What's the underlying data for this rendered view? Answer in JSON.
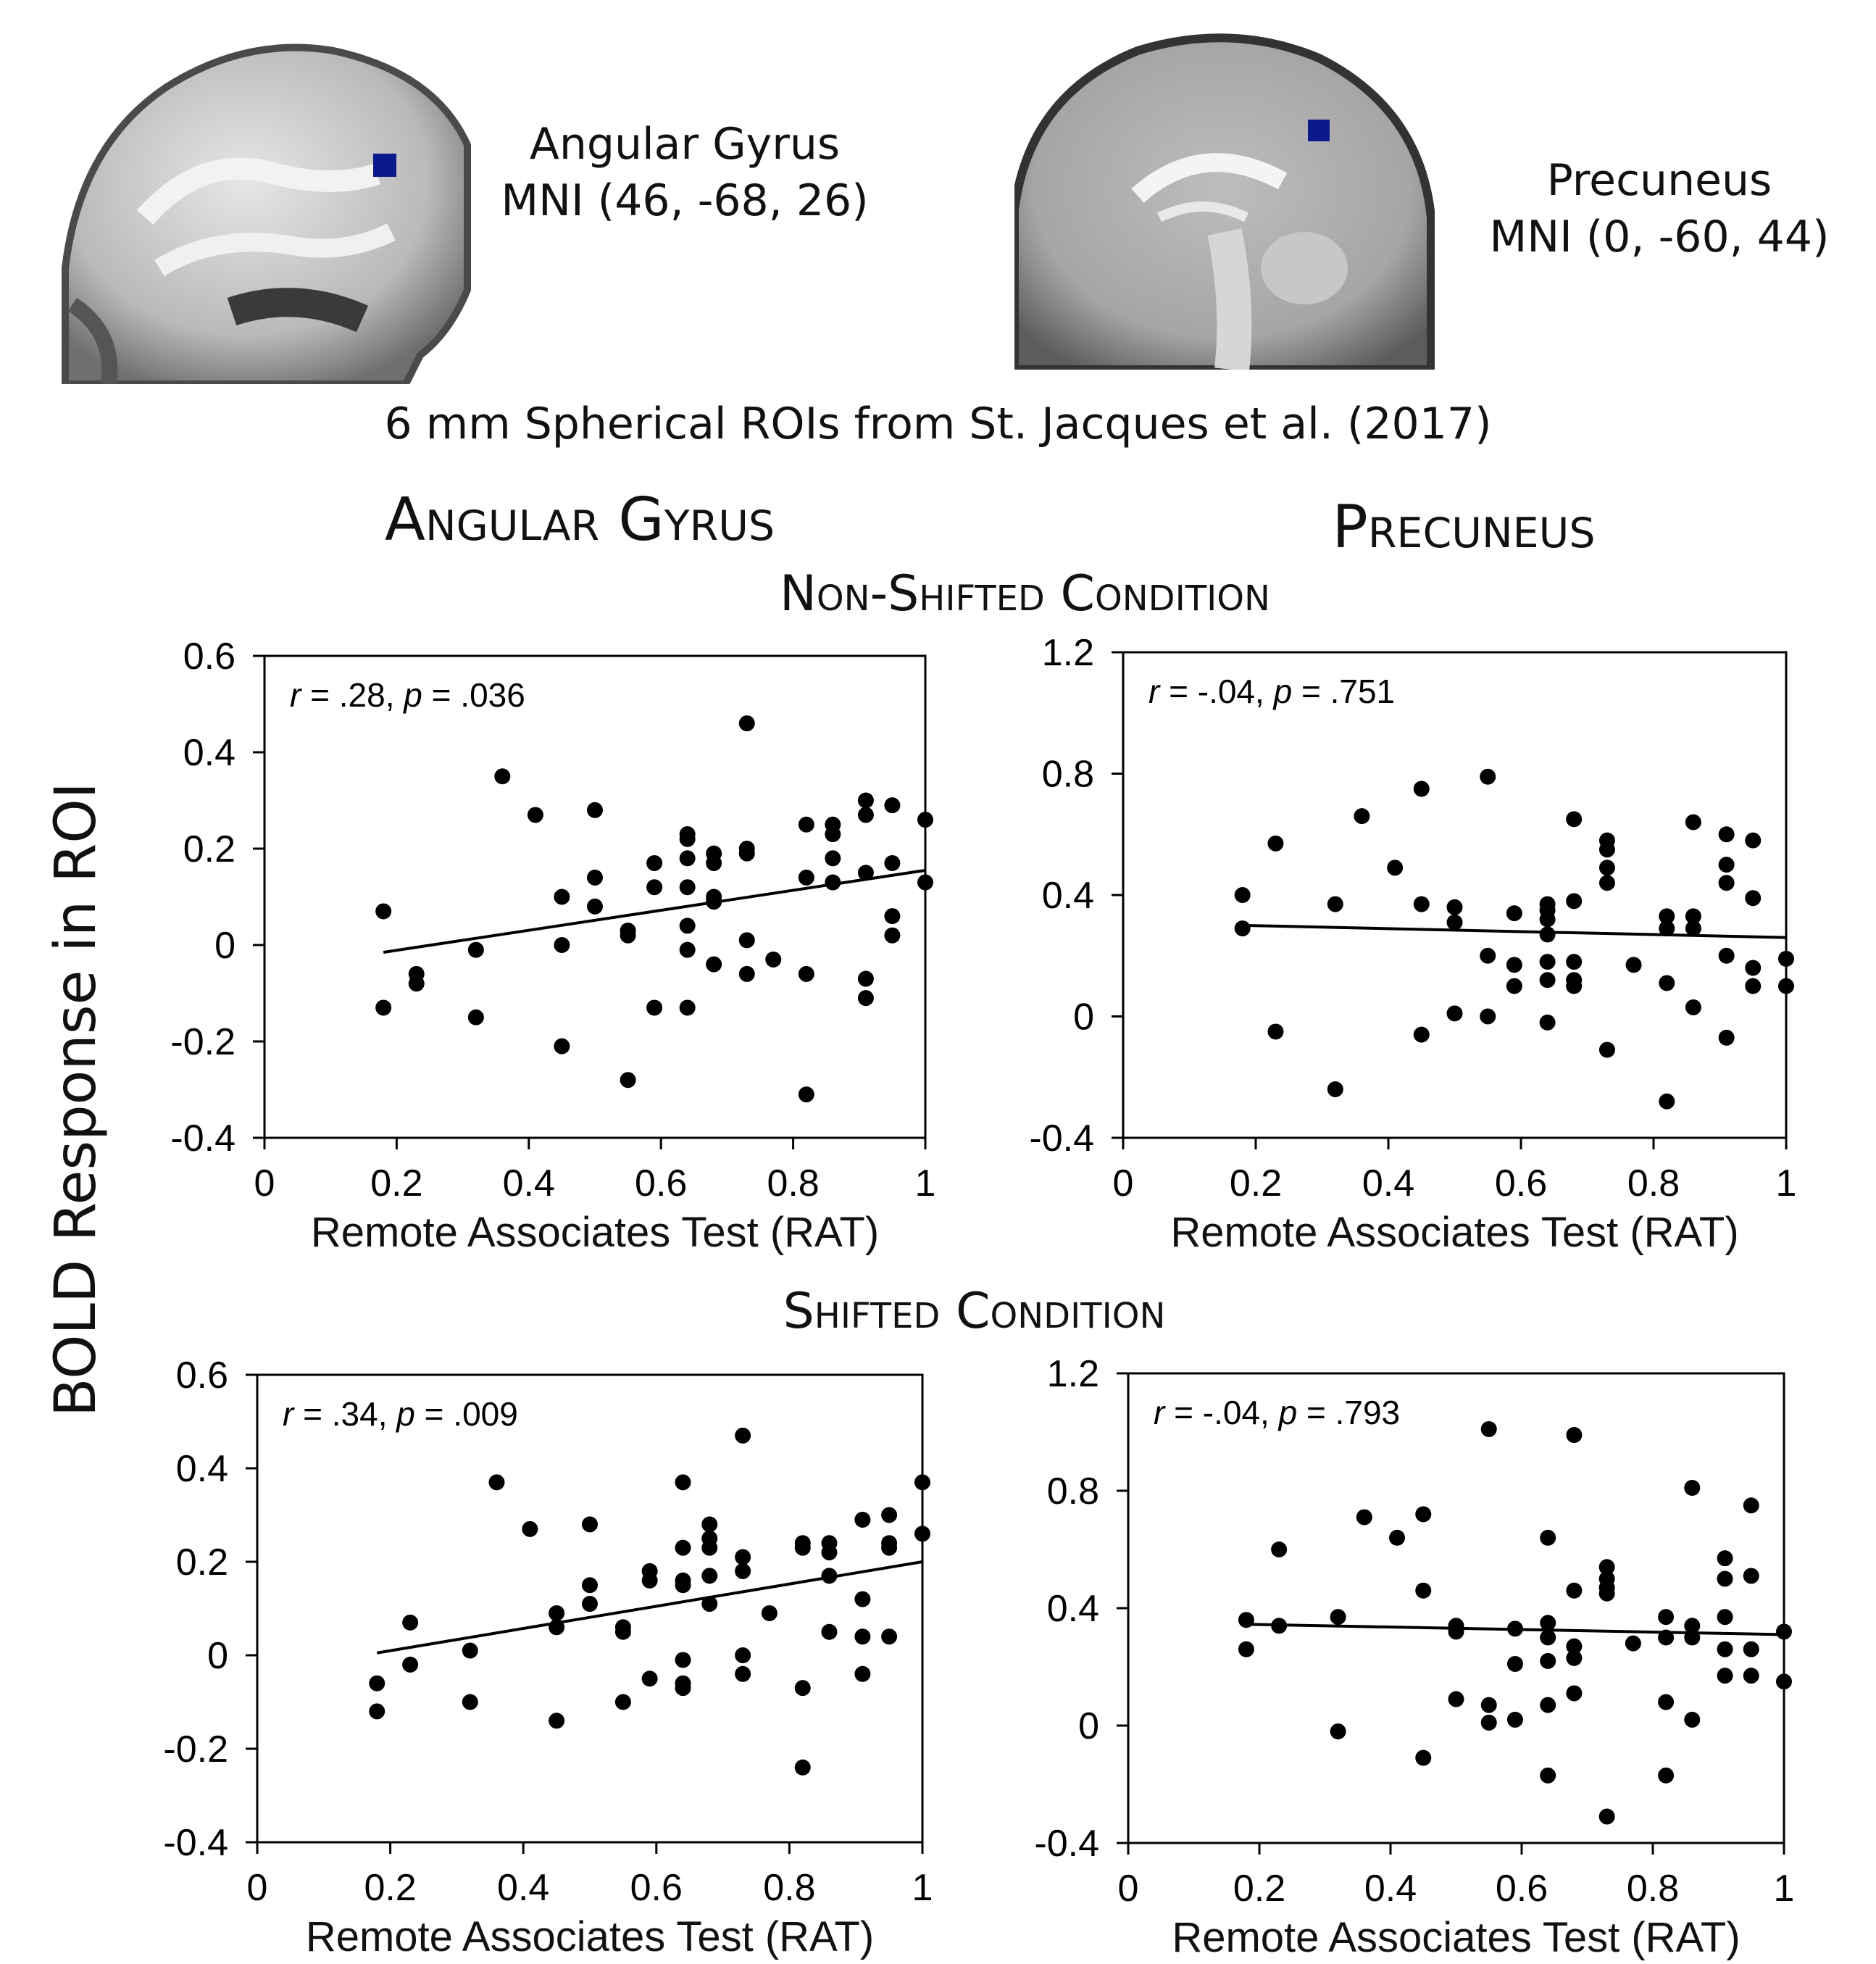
{
  "rois": [
    {
      "name": "Angular Gyrus",
      "coords": "MNI (46, -68, 26)"
    },
    {
      "name": "Precuneus",
      "coords": "MNI (0, -60, 44)"
    }
  ],
  "caption": "6 mm Spherical ROIs from St. Jacques et al. (2017)",
  "column_titles": [
    "Angular Gyrus",
    "Precuneus"
  ],
  "condition_titles": [
    "Non-Shifted Condition",
    "Shifted Condition"
  ],
  "y_label": "BOLD Response in ROI",
  "colors": {
    "marker": "#000000",
    "roi_marker": "#0a1a8c"
  },
  "chart_data": [
    {
      "type": "scatter",
      "panel": "Angular Gyrus – Non-Shifted Condition",
      "annotation": {
        "r": "r",
        "r_val": " = .28, ",
        "p": "p",
        "p_val": " = .036"
      },
      "xlabel": "Remote Associates Test (RAT)",
      "xlim": [
        0,
        1
      ],
      "ylim": [
        -0.4,
        0.6
      ],
      "xticks": [
        0,
        0.2,
        0.4,
        0.6,
        0.8,
        1
      ],
      "xtick_labels": [
        "0",
        "0.2",
        "0.4",
        "0.6",
        "0.8",
        "1"
      ],
      "yticks": [
        -0.4,
        -0.2,
        0,
        0.2,
        0.4,
        0.6
      ],
      "ytick_labels": [
        "-0.4",
        "-0.2",
        "0",
        "0.2",
        "0.4",
        "0.6"
      ],
      "fit_line": [
        [
          0.18,
          -0.015
        ],
        [
          1.0,
          0.155
        ]
      ],
      "points": [
        [
          0.18,
          0.07
        ],
        [
          0.18,
          -0.13
        ],
        [
          0.23,
          -0.06
        ],
        [
          0.23,
          -0.08
        ],
        [
          0.32,
          -0.01
        ],
        [
          0.32,
          -0.15
        ],
        [
          0.36,
          0.35
        ],
        [
          0.41,
          0.27
        ],
        [
          0.45,
          0.1
        ],
        [
          0.45,
          0.0
        ],
        [
          0.45,
          -0.21
        ],
        [
          0.5,
          0.28
        ],
        [
          0.5,
          0.14
        ],
        [
          0.5,
          0.08
        ],
        [
          0.55,
          0.03
        ],
        [
          0.55,
          0.02
        ],
        [
          0.55,
          -0.28
        ],
        [
          0.59,
          0.17
        ],
        [
          0.59,
          0.12
        ],
        [
          0.59,
          -0.13
        ],
        [
          0.64,
          0.23
        ],
        [
          0.64,
          0.22
        ],
        [
          0.64,
          0.18
        ],
        [
          0.64,
          0.12
        ],
        [
          0.64,
          0.04
        ],
        [
          0.64,
          -0.01
        ],
        [
          0.64,
          -0.13
        ],
        [
          0.68,
          0.19
        ],
        [
          0.68,
          0.17
        ],
        [
          0.68,
          0.1
        ],
        [
          0.68,
          0.09
        ],
        [
          0.68,
          -0.04
        ],
        [
          0.73,
          0.46
        ],
        [
          0.73,
          0.2
        ],
        [
          0.73,
          0.19
        ],
        [
          0.73,
          0.01
        ],
        [
          0.73,
          -0.06
        ],
        [
          0.77,
          -0.03
        ],
        [
          0.82,
          0.25
        ],
        [
          0.82,
          0.14
        ],
        [
          0.82,
          -0.06
        ],
        [
          0.82,
          -0.31
        ],
        [
          0.86,
          0.25
        ],
        [
          0.86,
          0.23
        ],
        [
          0.86,
          0.18
        ],
        [
          0.86,
          0.13
        ],
        [
          0.91,
          0.3
        ],
        [
          0.91,
          0.27
        ],
        [
          0.91,
          0.15
        ],
        [
          0.91,
          -0.07
        ],
        [
          0.91,
          -0.11
        ],
        [
          0.95,
          0.29
        ],
        [
          0.95,
          0.17
        ],
        [
          0.95,
          0.06
        ],
        [
          0.95,
          0.02
        ],
        [
          1.0,
          0.26
        ],
        [
          1.0,
          0.13
        ]
      ]
    },
    {
      "type": "scatter",
      "panel": "Precuneus – Non-Shifted Condition",
      "annotation": {
        "r": "r",
        "r_val": " = -.04, ",
        "p": "p",
        "p_val": " = .751"
      },
      "xlabel": "Remote Associates Test (RAT)",
      "xlim": [
        0,
        1
      ],
      "ylim": [
        -0.4,
        1.2
      ],
      "xticks": [
        0,
        0.2,
        0.4,
        0.6,
        0.8,
        1
      ],
      "xtick_labels": [
        "0",
        "0.2",
        "0.4",
        "0.6",
        "0.8",
        "1"
      ],
      "yticks": [
        -0.4,
        0,
        0.4,
        0.8,
        1.2
      ],
      "ytick_labels": [
        "-0.4",
        "0",
        "0.4",
        "0.8",
        "1.2"
      ],
      "fit_line": [
        [
          0.18,
          0.3
        ],
        [
          1.0,
          0.26
        ]
      ],
      "points": [
        [
          0.18,
          0.4
        ],
        [
          0.18,
          0.29
        ],
        [
          0.23,
          0.57
        ],
        [
          0.23,
          -0.05
        ],
        [
          0.32,
          0.37
        ],
        [
          0.32,
          -0.24
        ],
        [
          0.36,
          0.66
        ],
        [
          0.41,
          0.49
        ],
        [
          0.45,
          0.75
        ],
        [
          0.45,
          0.37
        ],
        [
          0.45,
          -0.06
        ],
        [
          0.5,
          0.36
        ],
        [
          0.5,
          0.31
        ],
        [
          0.5,
          0.01
        ],
        [
          0.55,
          0.79
        ],
        [
          0.55,
          0.2
        ],
        [
          0.55,
          0.0
        ],
        [
          0.59,
          0.34
        ],
        [
          0.59,
          0.17
        ],
        [
          0.59,
          0.1
        ],
        [
          0.64,
          0.37
        ],
        [
          0.64,
          0.35
        ],
        [
          0.64,
          0.32
        ],
        [
          0.64,
          0.27
        ],
        [
          0.64,
          0.18
        ],
        [
          0.64,
          0.12
        ],
        [
          0.64,
          -0.02
        ],
        [
          0.68,
          0.65
        ],
        [
          0.68,
          0.38
        ],
        [
          0.68,
          0.18
        ],
        [
          0.68,
          0.12
        ],
        [
          0.68,
          0.1
        ],
        [
          0.73,
          0.58
        ],
        [
          0.73,
          0.55
        ],
        [
          0.73,
          0.49
        ],
        [
          0.73,
          0.44
        ],
        [
          0.73,
          -0.11
        ],
        [
          0.77,
          0.17
        ],
        [
          0.82,
          0.33
        ],
        [
          0.82,
          0.29
        ],
        [
          0.82,
          0.11
        ],
        [
          0.82,
          -0.28
        ],
        [
          0.86,
          0.64
        ],
        [
          0.86,
          0.33
        ],
        [
          0.86,
          0.29
        ],
        [
          0.86,
          0.03
        ],
        [
          0.91,
          0.6
        ],
        [
          0.91,
          0.5
        ],
        [
          0.91,
          0.44
        ],
        [
          0.91,
          0.2
        ],
        [
          0.91,
          -0.07
        ],
        [
          0.95,
          0.58
        ],
        [
          0.95,
          0.39
        ],
        [
          0.95,
          0.16
        ],
        [
          0.95,
          0.1
        ],
        [
          1.0,
          0.19
        ],
        [
          1.0,
          0.1
        ]
      ]
    },
    {
      "type": "scatter",
      "panel": "Angular Gyrus – Shifted Condition",
      "annotation": {
        "r": "r",
        "r_val": " = .34, ",
        "p": "p",
        "p_val": " = .009"
      },
      "xlabel": "Remote Associates Test (RAT)",
      "xlim": [
        0,
        1
      ],
      "ylim": [
        -0.4,
        0.6
      ],
      "xticks": [
        0,
        0.2,
        0.4,
        0.6,
        0.8,
        1
      ],
      "xtick_labels": [
        "0",
        "0.2",
        "0.4",
        "0.6",
        "0.8",
        "1"
      ],
      "yticks": [
        -0.4,
        -0.2,
        0,
        0.2,
        0.4,
        0.6
      ],
      "ytick_labels": [
        "-0.4",
        "-0.2",
        "0",
        "0.2",
        "0.4",
        "0.6"
      ],
      "fit_line": [
        [
          0.18,
          0.005
        ],
        [
          1.0,
          0.2
        ]
      ],
      "points": [
        [
          0.18,
          -0.06
        ],
        [
          0.18,
          -0.12
        ],
        [
          0.23,
          0.07
        ],
        [
          0.23,
          -0.02
        ],
        [
          0.32,
          0.01
        ],
        [
          0.32,
          -0.1
        ],
        [
          0.36,
          0.37
        ],
        [
          0.41,
          0.27
        ],
        [
          0.45,
          0.09
        ],
        [
          0.45,
          0.06
        ],
        [
          0.45,
          -0.14
        ],
        [
          0.5,
          0.28
        ],
        [
          0.5,
          0.15
        ],
        [
          0.5,
          0.11
        ],
        [
          0.55,
          0.06
        ],
        [
          0.55,
          0.05
        ],
        [
          0.55,
          -0.1
        ],
        [
          0.59,
          0.18
        ],
        [
          0.59,
          0.16
        ],
        [
          0.59,
          -0.05
        ],
        [
          0.64,
          0.37
        ],
        [
          0.64,
          0.23
        ],
        [
          0.64,
          0.16
        ],
        [
          0.64,
          0.15
        ],
        [
          0.64,
          -0.01
        ],
        [
          0.64,
          -0.06
        ],
        [
          0.64,
          -0.07
        ],
        [
          0.68,
          0.28
        ],
        [
          0.68,
          0.25
        ],
        [
          0.68,
          0.23
        ],
        [
          0.68,
          0.17
        ],
        [
          0.68,
          0.11
        ],
        [
          0.73,
          0.47
        ],
        [
          0.73,
          0.21
        ],
        [
          0.73,
          0.18
        ],
        [
          0.73,
          0.0
        ],
        [
          0.73,
          -0.04
        ],
        [
          0.77,
          0.09
        ],
        [
          0.82,
          0.24
        ],
        [
          0.82,
          0.23
        ],
        [
          0.82,
          -0.07
        ],
        [
          0.82,
          -0.24
        ],
        [
          0.86,
          0.24
        ],
        [
          0.86,
          0.22
        ],
        [
          0.86,
          0.17
        ],
        [
          0.86,
          0.05
        ],
        [
          0.91,
          0.29
        ],
        [
          0.91,
          0.12
        ],
        [
          0.91,
          0.04
        ],
        [
          0.91,
          -0.04
        ],
        [
          0.95,
          0.3
        ],
        [
          0.95,
          0.24
        ],
        [
          0.95,
          0.23
        ],
        [
          0.95,
          0.04
        ],
        [
          1.0,
          0.37
        ],
        [
          1.0,
          0.26
        ]
      ]
    },
    {
      "type": "scatter",
      "panel": "Precuneus – Shifted Condition",
      "annotation": {
        "r": "r",
        "r_val": " = -.04, ",
        "p": "p",
        "p_val": " = .793"
      },
      "xlabel": "Remote Associates Test (RAT)",
      "xlim": [
        0,
        1
      ],
      "ylim": [
        -0.4,
        1.2
      ],
      "xticks": [
        0,
        0.2,
        0.4,
        0.6,
        0.8,
        1
      ],
      "xtick_labels": [
        "0",
        "0.2",
        "0.4",
        "0.6",
        "0.8",
        "1"
      ],
      "yticks": [
        -0.4,
        0,
        0.4,
        0.8,
        1.2
      ],
      "ytick_labels": [
        "-0.4",
        "0",
        "0.4",
        "0.8",
        "1.2"
      ],
      "fit_line": [
        [
          0.18,
          0.345
        ],
        [
          1.0,
          0.31
        ]
      ],
      "points": [
        [
          0.18,
          0.36
        ],
        [
          0.18,
          0.26
        ],
        [
          0.23,
          0.6
        ],
        [
          0.23,
          0.34
        ],
        [
          0.32,
          0.37
        ],
        [
          0.32,
          -0.02
        ],
        [
          0.36,
          0.71
        ],
        [
          0.41,
          0.64
        ],
        [
          0.45,
          0.72
        ],
        [
          0.45,
          0.46
        ],
        [
          0.45,
          -0.11
        ],
        [
          0.5,
          0.34
        ],
        [
          0.5,
          0.32
        ],
        [
          0.5,
          0.09
        ],
        [
          0.55,
          1.01
        ],
        [
          0.55,
          0.07
        ],
        [
          0.55,
          0.01
        ],
        [
          0.59,
          0.33
        ],
        [
          0.59,
          0.21
        ],
        [
          0.59,
          0.02
        ],
        [
          0.64,
          0.64
        ],
        [
          0.64,
          0.35
        ],
        [
          0.64,
          0.3
        ],
        [
          0.64,
          0.22
        ],
        [
          0.64,
          0.07
        ],
        [
          0.64,
          -0.17
        ],
        [
          0.68,
          0.99
        ],
        [
          0.68,
          0.46
        ],
        [
          0.68,
          0.27
        ],
        [
          0.68,
          0.23
        ],
        [
          0.68,
          0.11
        ],
        [
          0.73,
          0.54
        ],
        [
          0.73,
          0.5
        ],
        [
          0.73,
          0.47
        ],
        [
          0.73,
          0.45
        ],
        [
          0.73,
          -0.31
        ],
        [
          0.77,
          0.28
        ],
        [
          0.82,
          0.37
        ],
        [
          0.82,
          0.3
        ],
        [
          0.82,
          0.08
        ],
        [
          0.82,
          -0.17
        ],
        [
          0.86,
          0.81
        ],
        [
          0.86,
          0.34
        ],
        [
          0.86,
          0.3
        ],
        [
          0.86,
          0.02
        ],
        [
          0.91,
          0.57
        ],
        [
          0.91,
          0.5
        ],
        [
          0.91,
          0.37
        ],
        [
          0.91,
          0.26
        ],
        [
          0.91,
          0.17
        ],
        [
          0.95,
          0.75
        ],
        [
          0.95,
          0.51
        ],
        [
          0.95,
          0.26
        ],
        [
          0.95,
          0.17
        ],
        [
          1.0,
          0.32
        ],
        [
          1.0,
          0.15
        ]
      ]
    }
  ]
}
